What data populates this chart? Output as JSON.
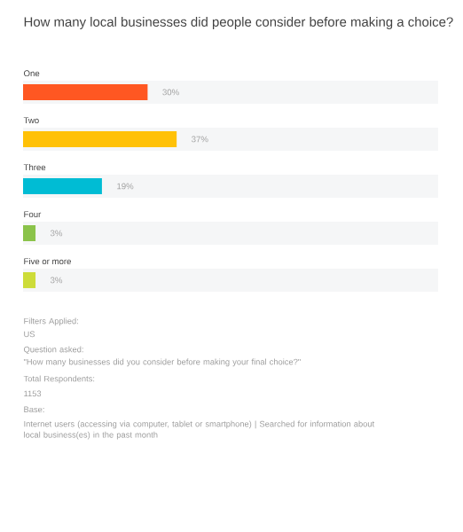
{
  "chart_data": {
    "type": "bar",
    "orientation": "horizontal",
    "title": "How many local businesses did people consider before making a choice?",
    "categories": [
      "One",
      "Two",
      "Three",
      "Four",
      "Five or more"
    ],
    "values": [
      30,
      37,
      19,
      3,
      3
    ],
    "value_labels": [
      "30%",
      "37%",
      "19%",
      "3%",
      "3%"
    ],
    "colors": [
      "#ff5722",
      "#ffc107",
      "#00bcd4",
      "#8bc34a",
      "#cddc39"
    ],
    "xlim": [
      0,
      100
    ],
    "annotations": [
      "Filters Applied:",
      "US",
      "Question asked:",
      "\"How many businesses did you consider before making your final choice?\"",
      "Total Respondents:",
      "1153",
      "Base:",
      "Internet users (accessing via computer, tablet or smartphone) | Searched for information about local business(es) in the past month"
    ]
  }
}
